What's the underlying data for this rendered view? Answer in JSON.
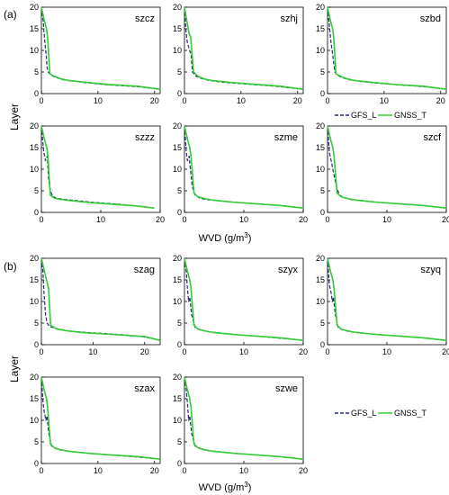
{
  "figure": {
    "panel_a_label": "(a)",
    "panel_b_label": "(b)",
    "ylabel": "Layer",
    "xlabel_main": "WVD (g/m",
    "xlabel_sup": "3",
    "xlabel_end": ")"
  },
  "legend": {
    "gfs_label": "GFS_L",
    "gnss_label": "GNSS_T"
  },
  "colors": {
    "gfs": "#1f2a7a",
    "gnss": "#33cc33",
    "axis": "#000000"
  },
  "chart_data": [
    {
      "type": "line",
      "title": "szcz",
      "group": "(a)",
      "xlim": [
        0,
        21
      ],
      "ylim": [
        0,
        20
      ],
      "xticks": [
        0,
        10,
        20
      ],
      "yticks": [
        0,
        5,
        10,
        15,
        20
      ],
      "series": [
        {
          "name": "GFS_L",
          "x": [
            0,
            0.3,
            0.6,
            0.9,
            1.0,
            1.2,
            1.6,
            2.3,
            3.5,
            5,
            8,
            12,
            17,
            21
          ],
          "y": [
            20,
            17,
            12,
            8,
            6,
            5,
            4.4,
            3.9,
            3.3,
            3,
            2.5,
            2,
            1.6,
            1
          ]
        },
        {
          "name": "GNSS_T",
          "x": [
            0,
            0.5,
            0.9,
            1.1,
            1.5,
            2.3,
            3.5,
            5,
            8,
            12,
            17,
            21
          ],
          "y": [
            20,
            17,
            15,
            13,
            4.6,
            4,
            3.4,
            3,
            2.6,
            2.1,
            1.7,
            1
          ]
        }
      ]
    },
    {
      "type": "line",
      "title": "szhj",
      "group": "(a)",
      "xlim": [
        0,
        21
      ],
      "ylim": [
        0,
        20
      ],
      "xticks": [
        0,
        10,
        20
      ],
      "yticks": [
        0,
        5,
        10,
        15,
        20
      ],
      "series": [
        {
          "name": "GFS_L",
          "x": [
            0,
            0.3,
            0.5,
            0.9,
            1.2,
            1.4,
            2.1,
            3,
            4.5,
            7,
            11,
            16,
            21
          ],
          "y": [
            20,
            14,
            12,
            10,
            9,
            5,
            4,
            3.5,
            3,
            2.6,
            2.2,
            1.7,
            1
          ]
        },
        {
          "name": "GNSS_T",
          "x": [
            0,
            0.4,
            0.8,
            1.1,
            1.6,
            2.4,
            3.5,
            5,
            8,
            12,
            17,
            21
          ],
          "y": [
            20,
            17,
            14,
            13,
            5,
            4,
            3.4,
            3,
            2.6,
            2.2,
            1.7,
            1
          ]
        }
      ]
    },
    {
      "type": "line",
      "title": "szbd",
      "group": "(a)",
      "xlim": [
        0,
        21
      ],
      "ylim": [
        0,
        20
      ],
      "xticks": [
        0,
        10,
        20
      ],
      "yticks": [
        0,
        5,
        10,
        15,
        20
      ],
      "series": [
        {
          "name": "GFS_L",
          "x": [
            0,
            0.3,
            0.6,
            0.9,
            1.1,
            1.3,
            1.8,
            2.6,
            3.8,
            6,
            9,
            13,
            18,
            21
          ],
          "y": [
            20,
            16,
            12,
            9,
            7,
            5,
            4.2,
            3.7,
            3.2,
            2.8,
            2.4,
            2,
            1.5,
            1
          ]
        },
        {
          "name": "GNSS_T",
          "x": [
            0,
            0.5,
            0.9,
            1.1,
            1.5,
            2.3,
            3.5,
            5,
            8,
            12,
            17,
            21
          ],
          "y": [
            20,
            17,
            15,
            13,
            4.6,
            4,
            3.4,
            3,
            2.6,
            2.1,
            1.7,
            1
          ]
        }
      ]
    },
    {
      "type": "line",
      "title": "szzz",
      "group": "(a)",
      "xlim": [
        0,
        20
      ],
      "ylim": [
        0,
        20
      ],
      "xticks": [
        0,
        10,
        20
      ],
      "yticks": [
        0,
        5,
        10,
        15,
        20
      ],
      "series": [
        {
          "name": "GFS_L",
          "x": [
            0,
            0.4,
            0.7,
            1.0,
            1.2,
            1.5,
            1.9,
            2.5,
            4,
            6,
            9,
            13,
            16,
            19
          ],
          "y": [
            20,
            14,
            12,
            13,
            8,
            5,
            3.8,
            3.3,
            3,
            2.7,
            2.3,
            1.9,
            1.5,
            1
          ]
        },
        {
          "name": "GNSS_T",
          "x": [
            0,
            0.5,
            0.9,
            1.1,
            1.5,
            2.2,
            3.3,
            5,
            8,
            12,
            16,
            19
          ],
          "y": [
            20,
            17,
            15,
            13,
            4,
            3.3,
            3,
            2.7,
            2.3,
            1.9,
            1.5,
            1
          ]
        }
      ]
    },
    {
      "type": "line",
      "title": "szme",
      "group": "(a)",
      "xlim": [
        0,
        20
      ],
      "ylim": [
        0,
        20
      ],
      "xticks": [
        0,
        10,
        20
      ],
      "yticks": [
        0,
        5,
        10,
        15,
        20
      ],
      "series": [
        {
          "name": "GFS_L",
          "x": [
            0,
            0.3,
            0.5,
            0.8,
            1.0,
            1.3,
            1.8,
            2.6,
            3.6,
            5.5,
            9,
            13,
            17,
            20
          ],
          "y": [
            20,
            14,
            12,
            13,
            10,
            6,
            4,
            3.3,
            3,
            2.7,
            2.3,
            1.9,
            1.5,
            1
          ]
        },
        {
          "name": "GNSS_T",
          "x": [
            0,
            0.5,
            0.9,
            1.1,
            1.6,
            2.3,
            3.4,
            5,
            8,
            12,
            16,
            20
          ],
          "y": [
            20,
            17,
            15,
            13,
            4.5,
            3.6,
            3.2,
            2.8,
            2.4,
            2,
            1.6,
            1
          ]
        }
      ]
    },
    {
      "type": "line",
      "title": "szcf",
      "group": "(a)",
      "xlim": [
        0,
        20
      ],
      "ylim": [
        0,
        20
      ],
      "xticks": [
        0,
        10,
        20
      ],
      "yticks": [
        0,
        5,
        10,
        15,
        20
      ],
      "series": [
        {
          "name": "GFS_L",
          "x": [
            0,
            0.3,
            0.6,
            0.9,
            1.2,
            1.5,
            2.0,
            2.8,
            3.8,
            6,
            9,
            13,
            17,
            20
          ],
          "y": [
            20,
            14,
            12,
            10,
            8,
            6,
            4,
            3.4,
            3,
            2.7,
            2.3,
            1.9,
            1.5,
            1
          ]
        },
        {
          "name": "GNSS_T",
          "x": [
            0,
            0.5,
            0.9,
            1.1,
            1.6,
            2.3,
            3.4,
            5,
            8,
            12,
            16,
            20
          ],
          "y": [
            20,
            17,
            15,
            13,
            4.5,
            3.6,
            3.2,
            2.8,
            2.4,
            2,
            1.6,
            1
          ]
        }
      ]
    },
    {
      "type": "line",
      "title": "szag",
      "group": "(b)",
      "xlim": [
        0,
        23
      ],
      "ylim": [
        0,
        20
      ],
      "xticks": [
        0,
        10,
        20
      ],
      "yticks": [
        0,
        5,
        10,
        15,
        20
      ],
      "series": [
        {
          "name": "GFS_L",
          "x": [
            0,
            0.3,
            0.5,
            0.8,
            1.1,
            1.6,
            3,
            5,
            8,
            12,
            16,
            20,
            23
          ],
          "y": [
            20,
            17,
            12,
            7,
            5,
            4.2,
            3.7,
            3.2,
            2.9,
            2.6,
            2.3,
            1.8,
            1
          ]
        },
        {
          "name": "GNSS_T",
          "x": [
            0,
            0.6,
            1.0,
            1.4,
            1.8,
            3,
            5,
            8,
            12,
            16,
            20,
            23
          ],
          "y": [
            20,
            17,
            15,
            13,
            4.5,
            3.6,
            3.2,
            2.8,
            2.5,
            2.2,
            1.9,
            1
          ]
        }
      ]
    },
    {
      "type": "line",
      "title": "szyx",
      "group": "(b)",
      "xlim": [
        0,
        20
      ],
      "ylim": [
        0,
        20
      ],
      "xticks": [
        0,
        10,
        20
      ],
      "yticks": [
        0,
        5,
        10,
        15,
        20
      ],
      "series": [
        {
          "name": "GFS_L",
          "x": [
            0,
            0.3,
            0.5,
            0.7,
            0.9,
            1.2,
            1.8,
            2.6,
            4,
            6,
            9,
            13,
            17,
            20
          ],
          "y": [
            20,
            17,
            13,
            10,
            11,
            7,
            4,
            3.4,
            3,
            2.7,
            2.3,
            1.9,
            1.4,
            1
          ]
        },
        {
          "name": "GNSS_T",
          "x": [
            0,
            0.5,
            0.9,
            1.1,
            1.6,
            2.3,
            3.4,
            5,
            8,
            12,
            16,
            20
          ],
          "y": [
            20,
            17,
            15,
            13,
            4.5,
            3.6,
            3.2,
            2.8,
            2.4,
            2,
            1.6,
            1
          ]
        }
      ]
    },
    {
      "type": "line",
      "title": "szyq",
      "group": "(b)",
      "xlim": [
        0,
        20
      ],
      "ylim": [
        0,
        20
      ],
      "xticks": [
        0,
        10,
        20
      ],
      "yticks": [
        0,
        5,
        10,
        15,
        20
      ],
      "series": [
        {
          "name": "GFS_L",
          "x": [
            0,
            0.3,
            0.6,
            0.8,
            1.0,
            1.3,
            1.8,
            2.6,
            3.8,
            6,
            9,
            13,
            17,
            20
          ],
          "y": [
            20,
            14,
            12,
            10,
            11,
            7,
            4,
            3.4,
            3,
            2.7,
            2.3,
            1.9,
            1.5,
            1
          ]
        },
        {
          "name": "GNSS_T",
          "x": [
            0,
            0.5,
            0.9,
            1.1,
            1.6,
            2.3,
            3.4,
            5,
            8,
            12,
            16,
            20
          ],
          "y": [
            20,
            17,
            15,
            13,
            4.5,
            3.6,
            3.2,
            2.8,
            2.4,
            2,
            1.6,
            1
          ]
        }
      ]
    },
    {
      "type": "line",
      "title": "szax",
      "group": "(b)",
      "xlim": [
        0,
        21
      ],
      "ylim": [
        0,
        20
      ],
      "xticks": [
        0,
        10,
        20
      ],
      "yticks": [
        0,
        5,
        10,
        15,
        20
      ],
      "series": [
        {
          "name": "GFS_L",
          "x": [
            0,
            0.3,
            0.5,
            0.8,
            1.0,
            1.3,
            1.8,
            2.6,
            3.8,
            6,
            9,
            13,
            17,
            21
          ],
          "y": [
            20,
            14,
            12,
            10,
            11,
            7,
            4,
            3.4,
            3,
            2.7,
            2.3,
            1.9,
            1.5,
            1
          ]
        },
        {
          "name": "GNSS_T",
          "x": [
            0,
            0.5,
            0.9,
            1.1,
            1.6,
            2.3,
            3.4,
            5,
            8,
            12,
            17,
            21
          ],
          "y": [
            20,
            17,
            15,
            13,
            4.5,
            3.6,
            3.2,
            2.8,
            2.4,
            2,
            1.6,
            1
          ]
        }
      ]
    },
    {
      "type": "line",
      "title": "szwe",
      "group": "(b)",
      "xlim": [
        0,
        20
      ],
      "ylim": [
        0,
        20
      ],
      "xticks": [
        0,
        10,
        20
      ],
      "yticks": [
        0,
        5,
        10,
        15,
        20
      ],
      "series": [
        {
          "name": "GFS_L",
          "x": [
            0,
            0.3,
            0.5,
            0.7,
            0.9,
            1.2,
            1.8,
            2.6,
            3.8,
            6,
            9,
            13,
            17,
            20
          ],
          "y": [
            20,
            17,
            14,
            10,
            11,
            7,
            4,
            3.4,
            3,
            2.7,
            2.3,
            1.9,
            1.5,
            1
          ]
        },
        {
          "name": "GNSS_T",
          "x": [
            0,
            0.5,
            0.9,
            1.1,
            1.6,
            2.3,
            3.4,
            5,
            8,
            12,
            16,
            20
          ],
          "y": [
            20,
            17,
            15,
            13,
            4.5,
            3.6,
            3.2,
            2.8,
            2.4,
            2,
            1.6,
            1
          ]
        }
      ]
    }
  ]
}
